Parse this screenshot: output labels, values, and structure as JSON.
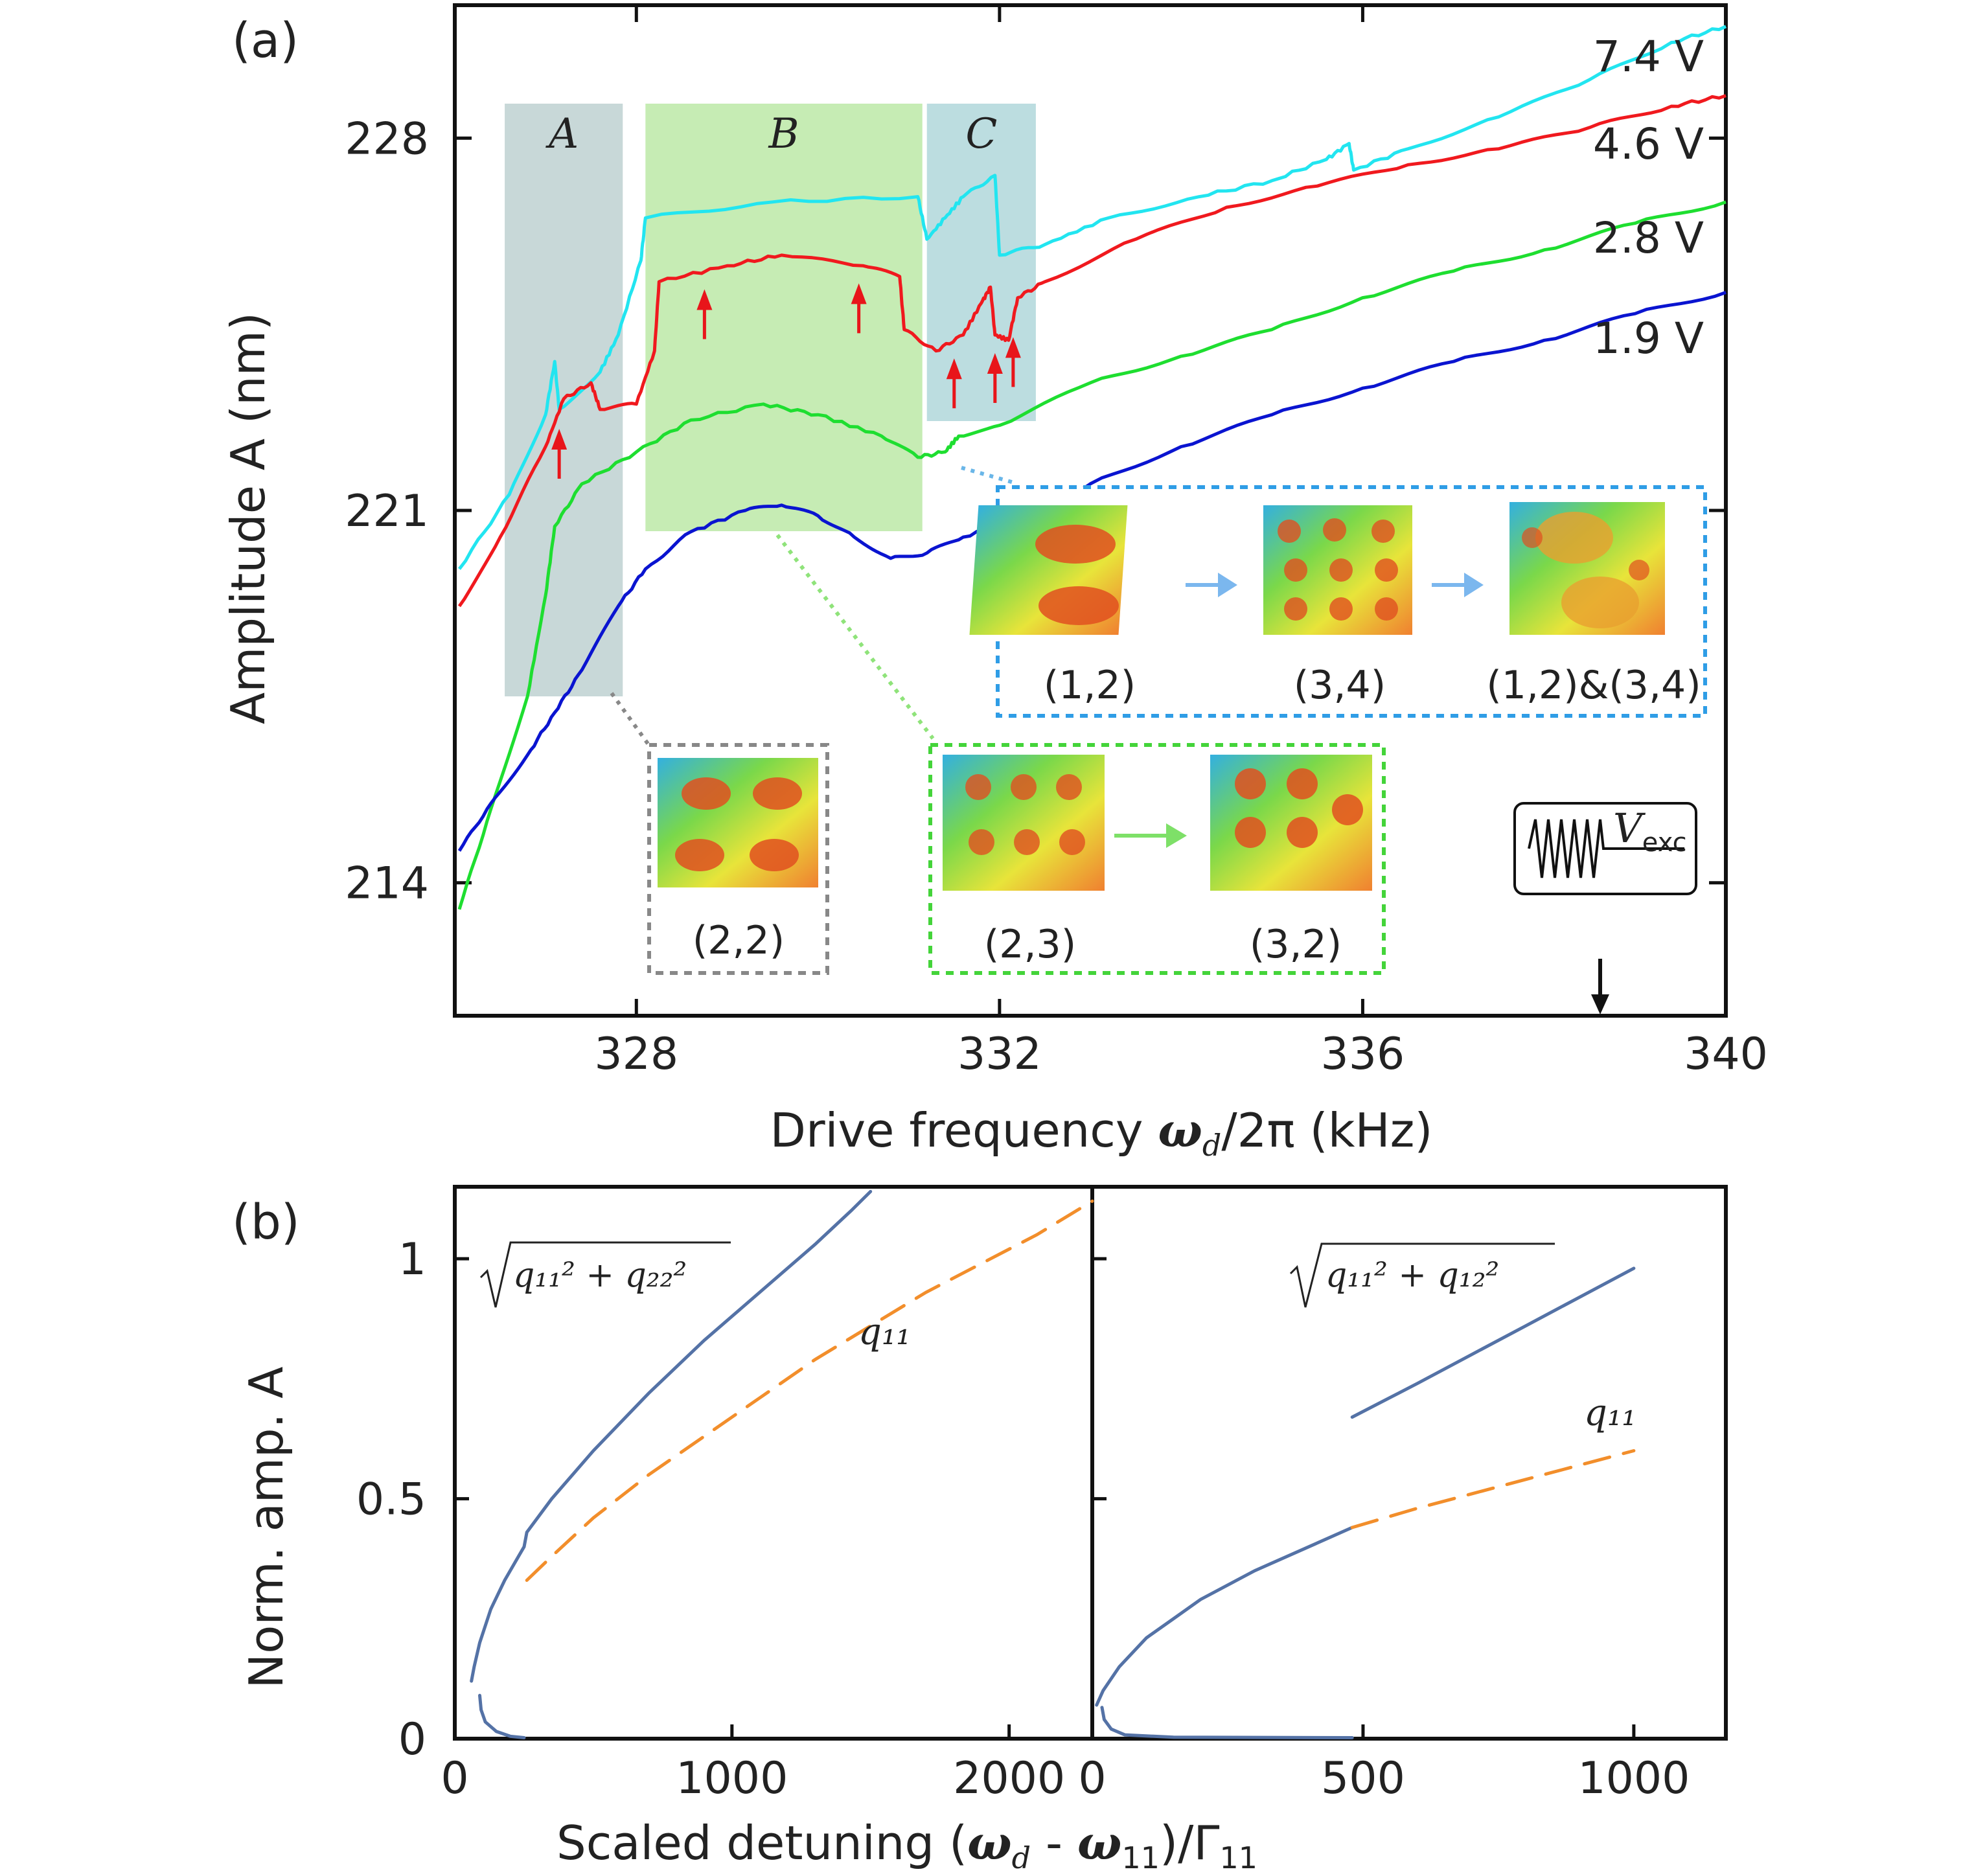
{
  "chart_data": [
    {
      "type": "line",
      "panel_label": "(a)",
      "xlabel": "Drive frequency ω_d/2π (kHz)",
      "xlabel_parts": {
        "main": "Drive frequency ",
        "omega": "ω",
        "sub": "d",
        "rest": "/2π (kHz)"
      },
      "ylabel": "Amplitude A (nm)",
      "xlim": [
        326,
        340
      ],
      "ylim": [
        211.5,
        230.5
      ],
      "xticks": [
        328,
        332,
        336,
        340
      ],
      "yticks": [
        214,
        221,
        228
      ],
      "series": [
        {
          "name": "7.4 V",
          "color": "#22e5f0",
          "points": [
            [
              326.05,
              219.9
            ],
            [
              326.6,
              221.3
            ],
            [
              327.0,
              222.8
            ],
            [
              327.1,
              223.8
            ],
            [
              327.15,
              222.9
            ],
            [
              327.6,
              223.6
            ],
            [
              327.8,
              224.3
            ],
            [
              328.05,
              225.7
            ],
            [
              328.1,
              226.5
            ],
            [
              329.5,
              226.8
            ],
            [
              331.1,
              226.9
            ],
            [
              331.2,
              226.1
            ],
            [
              331.4,
              226.5
            ],
            [
              331.6,
              226.9
            ],
            [
              331.95,
              227.3
            ],
            [
              332.0,
              225.8
            ],
            [
              332.5,
              226.0
            ],
            [
              333.2,
              226.5
            ],
            [
              334.2,
              226.9
            ],
            [
              335.0,
              227.2
            ],
            [
              335.6,
              227.6
            ],
            [
              335.85,
              227.9
            ],
            [
              335.9,
              227.4
            ],
            [
              336.5,
              227.8
            ],
            [
              337.5,
              228.4
            ],
            [
              338.5,
              229.1
            ],
            [
              339.4,
              229.8
            ],
            [
              340.0,
              230.1
            ]
          ]
        },
        {
          "name": "4.6 V",
          "color": "#f0191e",
          "points": [
            [
              326.05,
              219.2
            ],
            [
              326.5,
              220.5
            ],
            [
              327.0,
              222.2
            ],
            [
              327.2,
              223.1
            ],
            [
              327.5,
              223.4
            ],
            [
              327.6,
              222.9
            ],
            [
              328.0,
              223.0
            ],
            [
              328.2,
              224.0
            ],
            [
              328.25,
              225.3
            ],
            [
              329.0,
              225.6
            ],
            [
              329.6,
              225.8
            ],
            [
              330.5,
              225.6
            ],
            [
              330.9,
              225.4
            ],
            [
              330.95,
              224.4
            ],
            [
              331.3,
              224.0
            ],
            [
              331.6,
              224.3
            ],
            [
              331.8,
              224.9
            ],
            [
              331.9,
              225.2
            ],
            [
              331.95,
              224.3
            ],
            [
              332.1,
              224.2
            ],
            [
              332.2,
              225.0
            ],
            [
              332.5,
              225.3
            ],
            [
              333.5,
              226.1
            ],
            [
              334.5,
              226.7
            ],
            [
              335.5,
              227.1
            ],
            [
              336.5,
              227.5
            ],
            [
              337.5,
              227.8
            ],
            [
              338.5,
              228.2
            ],
            [
              339.4,
              228.6
            ],
            [
              340.0,
              228.8
            ]
          ]
        },
        {
          "name": "2.8 V",
          "color": "#1ede30",
          "points": [
            [
              326.05,
              213.5
            ],
            [
              326.4,
              215.4
            ],
            [
              326.8,
              217.5
            ],
            [
              327.0,
              219.4
            ],
            [
              327.1,
              220.7
            ],
            [
              327.4,
              221.5
            ],
            [
              328.0,
              222.1
            ],
            [
              328.6,
              222.7
            ],
            [
              329.4,
              223.0
            ],
            [
              330.0,
              222.8
            ],
            [
              330.7,
              222.4
            ],
            [
              331.1,
              222.0
            ],
            [
              331.4,
              222.1
            ],
            [
              331.55,
              222.4
            ],
            [
              332.0,
              222.6
            ],
            [
              333.0,
              223.4
            ],
            [
              334.0,
              223.9
            ],
            [
              335.0,
              224.4
            ],
            [
              336.0,
              225.0
            ],
            [
              337.0,
              225.5
            ],
            [
              338.0,
              225.9
            ],
            [
              339.0,
              226.4
            ],
            [
              340.0,
              226.8
            ]
          ]
        },
        {
          "name": "1.9 V",
          "color": "#0a14d0",
          "points": [
            [
              326.05,
              214.6
            ],
            [
              326.4,
              215.5
            ],
            [
              326.8,
              216.4
            ],
            [
              327.1,
              217.2
            ],
            [
              327.4,
              218.0
            ],
            [
              327.8,
              219.2
            ],
            [
              328.1,
              219.9
            ],
            [
              328.6,
              220.6
            ],
            [
              329.2,
              221.0
            ],
            [
              329.6,
              221.1
            ],
            [
              330.0,
              220.9
            ],
            [
              330.4,
              220.5
            ],
            [
              330.8,
              220.1
            ],
            [
              331.2,
              220.2
            ],
            [
              331.6,
              220.5
            ],
            [
              332.2,
              220.8
            ],
            [
              333.0,
              221.5
            ],
            [
              334.0,
              222.2
            ],
            [
              335.0,
              222.8
            ],
            [
              336.0,
              223.3
            ],
            [
              337.0,
              223.8
            ],
            [
              338.0,
              224.2
            ],
            [
              339.0,
              224.7
            ],
            [
              340.0,
              225.1
            ]
          ]
        }
      ],
      "regions": [
        {
          "label": "A",
          "x0": 326.55,
          "x1": 327.85,
          "color": "#c8d8d8"
        },
        {
          "label": "B",
          "x0": 328.1,
          "x1": 331.15,
          "color": "#c6ecb4"
        },
        {
          "label": "C",
          "x0": 331.2,
          "x1": 332.4,
          "color": "#bcdde0"
        }
      ],
      "red_arrows_x": [
        327.15,
        328.75,
        330.45,
        331.5,
        331.95,
        332.15
      ],
      "insets": {
        "blue_group": [
          "(1,2)",
          "(3,4)",
          "(1,2)&(3,4)"
        ],
        "gray_group": [
          "(2,2)"
        ],
        "green_group": [
          "(2,3)",
          "(3,2)"
        ]
      },
      "excitation_label": {
        "main": "V",
        "sub": "exc"
      }
    },
    {
      "type": "line",
      "panel_label": "(b)",
      "ylabel": "Norm. amp. A",
      "xlabel": "Scaled detuning (ω_d - ω_11)/Γ_11",
      "xlabel_parts": {
        "main": "Scaled detuning (",
        "omega1": "ω",
        "sub1": "d",
        "mid": " - ",
        "omega2": "ω",
        "sub2": "11",
        "close": ")/Γ",
        "sub3": "11"
      },
      "yticks": [
        "0",
        "0.5",
        "1"
      ],
      "subplots": [
        {
          "xlim": [
            0,
            2300
          ],
          "ylim": [
            0,
            1.15
          ],
          "xticks": [
            "0",
            "1000",
            "2000"
          ],
          "labels": {
            "radical": "q₁₁² + q₂₂²",
            "dashed": "q₁₁"
          },
          "series": [
            {
              "name": "sqrt(q11^2+q22^2)",
              "style": "solid",
              "color": "#5472a6",
              "points": [
                [
                  60,
                  0.12
                ],
                [
                  70,
                  0.15
                ],
                [
                  90,
                  0.2
                ],
                [
                  130,
                  0.27
                ],
                [
                  180,
                  0.33
                ],
                [
                  230,
                  0.38
                ],
                [
                  250,
                  0.4
                ],
                [
                  260,
                  0.43
                ],
                [
                  350,
                  0.5
                ],
                [
                  500,
                  0.6
                ],
                [
                  700,
                  0.72
                ],
                [
                  900,
                  0.83
                ],
                [
                  1100,
                  0.93
                ],
                [
                  1300,
                  1.03
                ],
                [
                  1430,
                  1.1
                ],
                [
                  1500,
                  1.14
                ]
              ]
            },
            {
              "name": "lower branch",
              "style": "solid",
              "color": "#5472a6",
              "points": [
                [
                  90,
                  0.09
                ],
                [
                  95,
                  0.06
                ],
                [
                  110,
                  0.035
                ],
                [
                  150,
                  0.015
                ],
                [
                  200,
                  0.005
                ],
                [
                  250,
                  0.002
                ]
              ]
            },
            {
              "name": "q11",
              "style": "dashed",
              "color": "#f28e2b",
              "points": [
                [
                  260,
                  0.33
                ],
                [
                  350,
                  0.38
                ],
                [
                  500,
                  0.46
                ],
                [
                  700,
                  0.55
                ],
                [
                  900,
                  0.63
                ],
                [
                  1100,
                  0.71
                ],
                [
                  1300,
                  0.79
                ],
                [
                  1500,
                  0.86
                ],
                [
                  1700,
                  0.93
                ],
                [
                  1900,
                  0.99
                ],
                [
                  2100,
                  1.05
                ],
                [
                  2300,
                  1.12
                ]
              ]
            }
          ]
        },
        {
          "xlim": [
            0,
            1170
          ],
          "ylim": [
            0,
            1.15
          ],
          "xticks": [
            "0",
            "500",
            "1000"
          ],
          "labels": {
            "radical": "q₁₁² + q₁₂²",
            "dashed": "q₁₁"
          },
          "series": [
            {
              "name": "sqrt(q11^2+q12^2) low",
              "style": "solid",
              "color": "#5472a6",
              "points": [
                [
                  8,
                  0.07
                ],
                [
                  20,
                  0.1
                ],
                [
                  50,
                  0.15
                ],
                [
                  100,
                  0.21
                ],
                [
                  150,
                  0.25
                ],
                [
                  200,
                  0.29
                ],
                [
                  300,
                  0.35
                ],
                [
                  400,
                  0.4
                ],
                [
                  480,
                  0.44
                ]
              ]
            },
            {
              "name": "sqrt(q11^2+q12^2) high",
              "style": "solid",
              "color": "#5472a6",
              "points": [
                [
                  480,
                  0.67
                ],
                [
                  600,
                  0.74
                ],
                [
                  700,
                  0.8
                ],
                [
                  800,
                  0.86
                ],
                [
                  900,
                  0.92
                ],
                [
                  1000,
                  0.98
                ]
              ]
            },
            {
              "name": "lower branch",
              "style": "solid",
              "color": "#5472a6",
              "points": [
                [
                  18,
                  0.065
                ],
                [
                  22,
                  0.04
                ],
                [
                  35,
                  0.02
                ],
                [
                  60,
                  0.008
                ],
                [
                  150,
                  0.003
                ],
                [
                  480,
                  0.002
                ]
              ]
            },
            {
              "name": "q11",
              "style": "dashed",
              "color": "#f28e2b",
              "points": [
                [
                  480,
                  0.44
                ],
                [
                  600,
                  0.48
                ],
                [
                  700,
                  0.51
                ],
                [
                  800,
                  0.54
                ],
                [
                  900,
                  0.57
                ],
                [
                  1000,
                  0.6
                ]
              ]
            }
          ]
        }
      ]
    }
  ]
}
